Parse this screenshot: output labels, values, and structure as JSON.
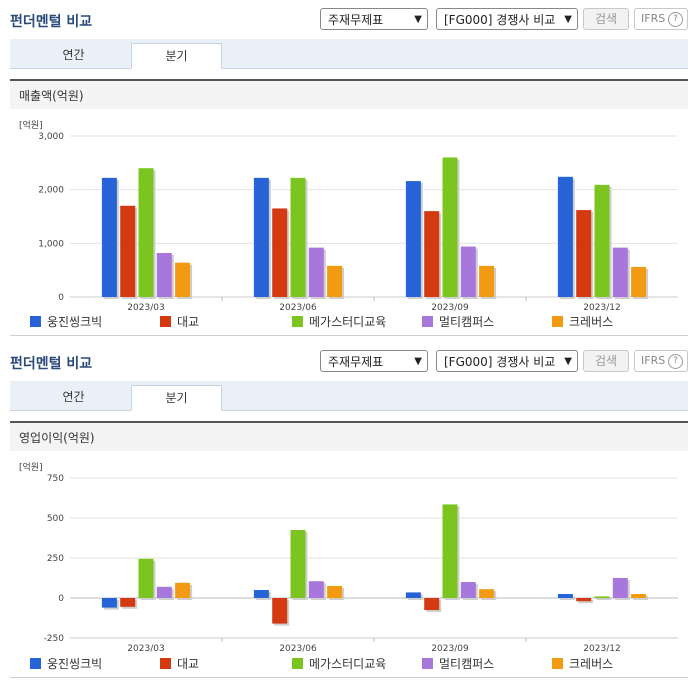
{
  "colors": [
    "#2563d6",
    "#d33a12",
    "#7cc520",
    "#a877db",
    "#f29a12"
  ],
  "sections": [
    {
      "title": "펀더멘털 비교",
      "select1": "주재무제표",
      "select2": "[FG000] 경쟁사 비교",
      "search_label": "검색",
      "ifrs_label": "IFRS",
      "help_label": "?",
      "tabs": [
        {
          "label": "연간"
        },
        {
          "label": "분기"
        }
      ],
      "active_tab": 1,
      "chart_title": "매출액(억원)",
      "unit": "[억원]"
    },
    {
      "title": "펀더멘털 비교",
      "select1": "주재무제표",
      "select2": "[FG000] 경쟁사 비교",
      "search_label": "검색",
      "ifrs_label": "IFRS",
      "help_label": "?",
      "tabs": [
        {
          "label": "연간"
        },
        {
          "label": "분기"
        }
      ],
      "active_tab": 1,
      "chart_title": "영업이익(억원)",
      "unit": "[억원]"
    }
  ],
  "chart_data": [
    {
      "type": "bar",
      "title": "매출액(억원)",
      "ylabel": "[억원]",
      "categories": [
        "2023/03",
        "2023/06",
        "2023/09",
        "2023/12"
      ],
      "yticks": [
        0,
        1000,
        2000,
        3000
      ],
      "ytick_labels": [
        "0",
        "1,000",
        "2,000",
        "3,000"
      ],
      "ylim": [
        0,
        3000
      ],
      "series": [
        {
          "name": "웅진씽크빅",
          "values": [
            2220,
            2220,
            2160,
            2240
          ]
        },
        {
          "name": "대교",
          "values": [
            1700,
            1650,
            1600,
            1620
          ]
        },
        {
          "name": "메가스터디교육",
          "values": [
            2400,
            2220,
            2600,
            2090
          ]
        },
        {
          "name": "멀티캠퍼스",
          "values": [
            820,
            920,
            940,
            920
          ]
        },
        {
          "name": "크레버스",
          "values": [
            640,
            580,
            580,
            560
          ]
        }
      ],
      "legend_position": "bottom"
    },
    {
      "type": "bar",
      "title": "영업이익(억원)",
      "ylabel": "[억원]",
      "categories": [
        "2023/03",
        "2023/06",
        "2023/09",
        "2023/12"
      ],
      "yticks": [
        -250,
        0,
        250,
        500,
        750
      ],
      "ytick_labels": [
        "-250",
        "0",
        "250",
        "500",
        "750"
      ],
      "ylim": [
        -250,
        750
      ],
      "series": [
        {
          "name": "웅진씽크빅",
          "values": [
            -60,
            50,
            35,
            25
          ]
        },
        {
          "name": "대교",
          "values": [
            -55,
            -160,
            -75,
            -20
          ]
        },
        {
          "name": "메가스터디교육",
          "values": [
            245,
            425,
            585,
            10
          ]
        },
        {
          "name": "멀티캠퍼스",
          "values": [
            70,
            105,
            100,
            125
          ]
        },
        {
          "name": "크레버스",
          "values": [
            95,
            75,
            55,
            25
          ]
        }
      ],
      "legend_position": "bottom"
    }
  ]
}
